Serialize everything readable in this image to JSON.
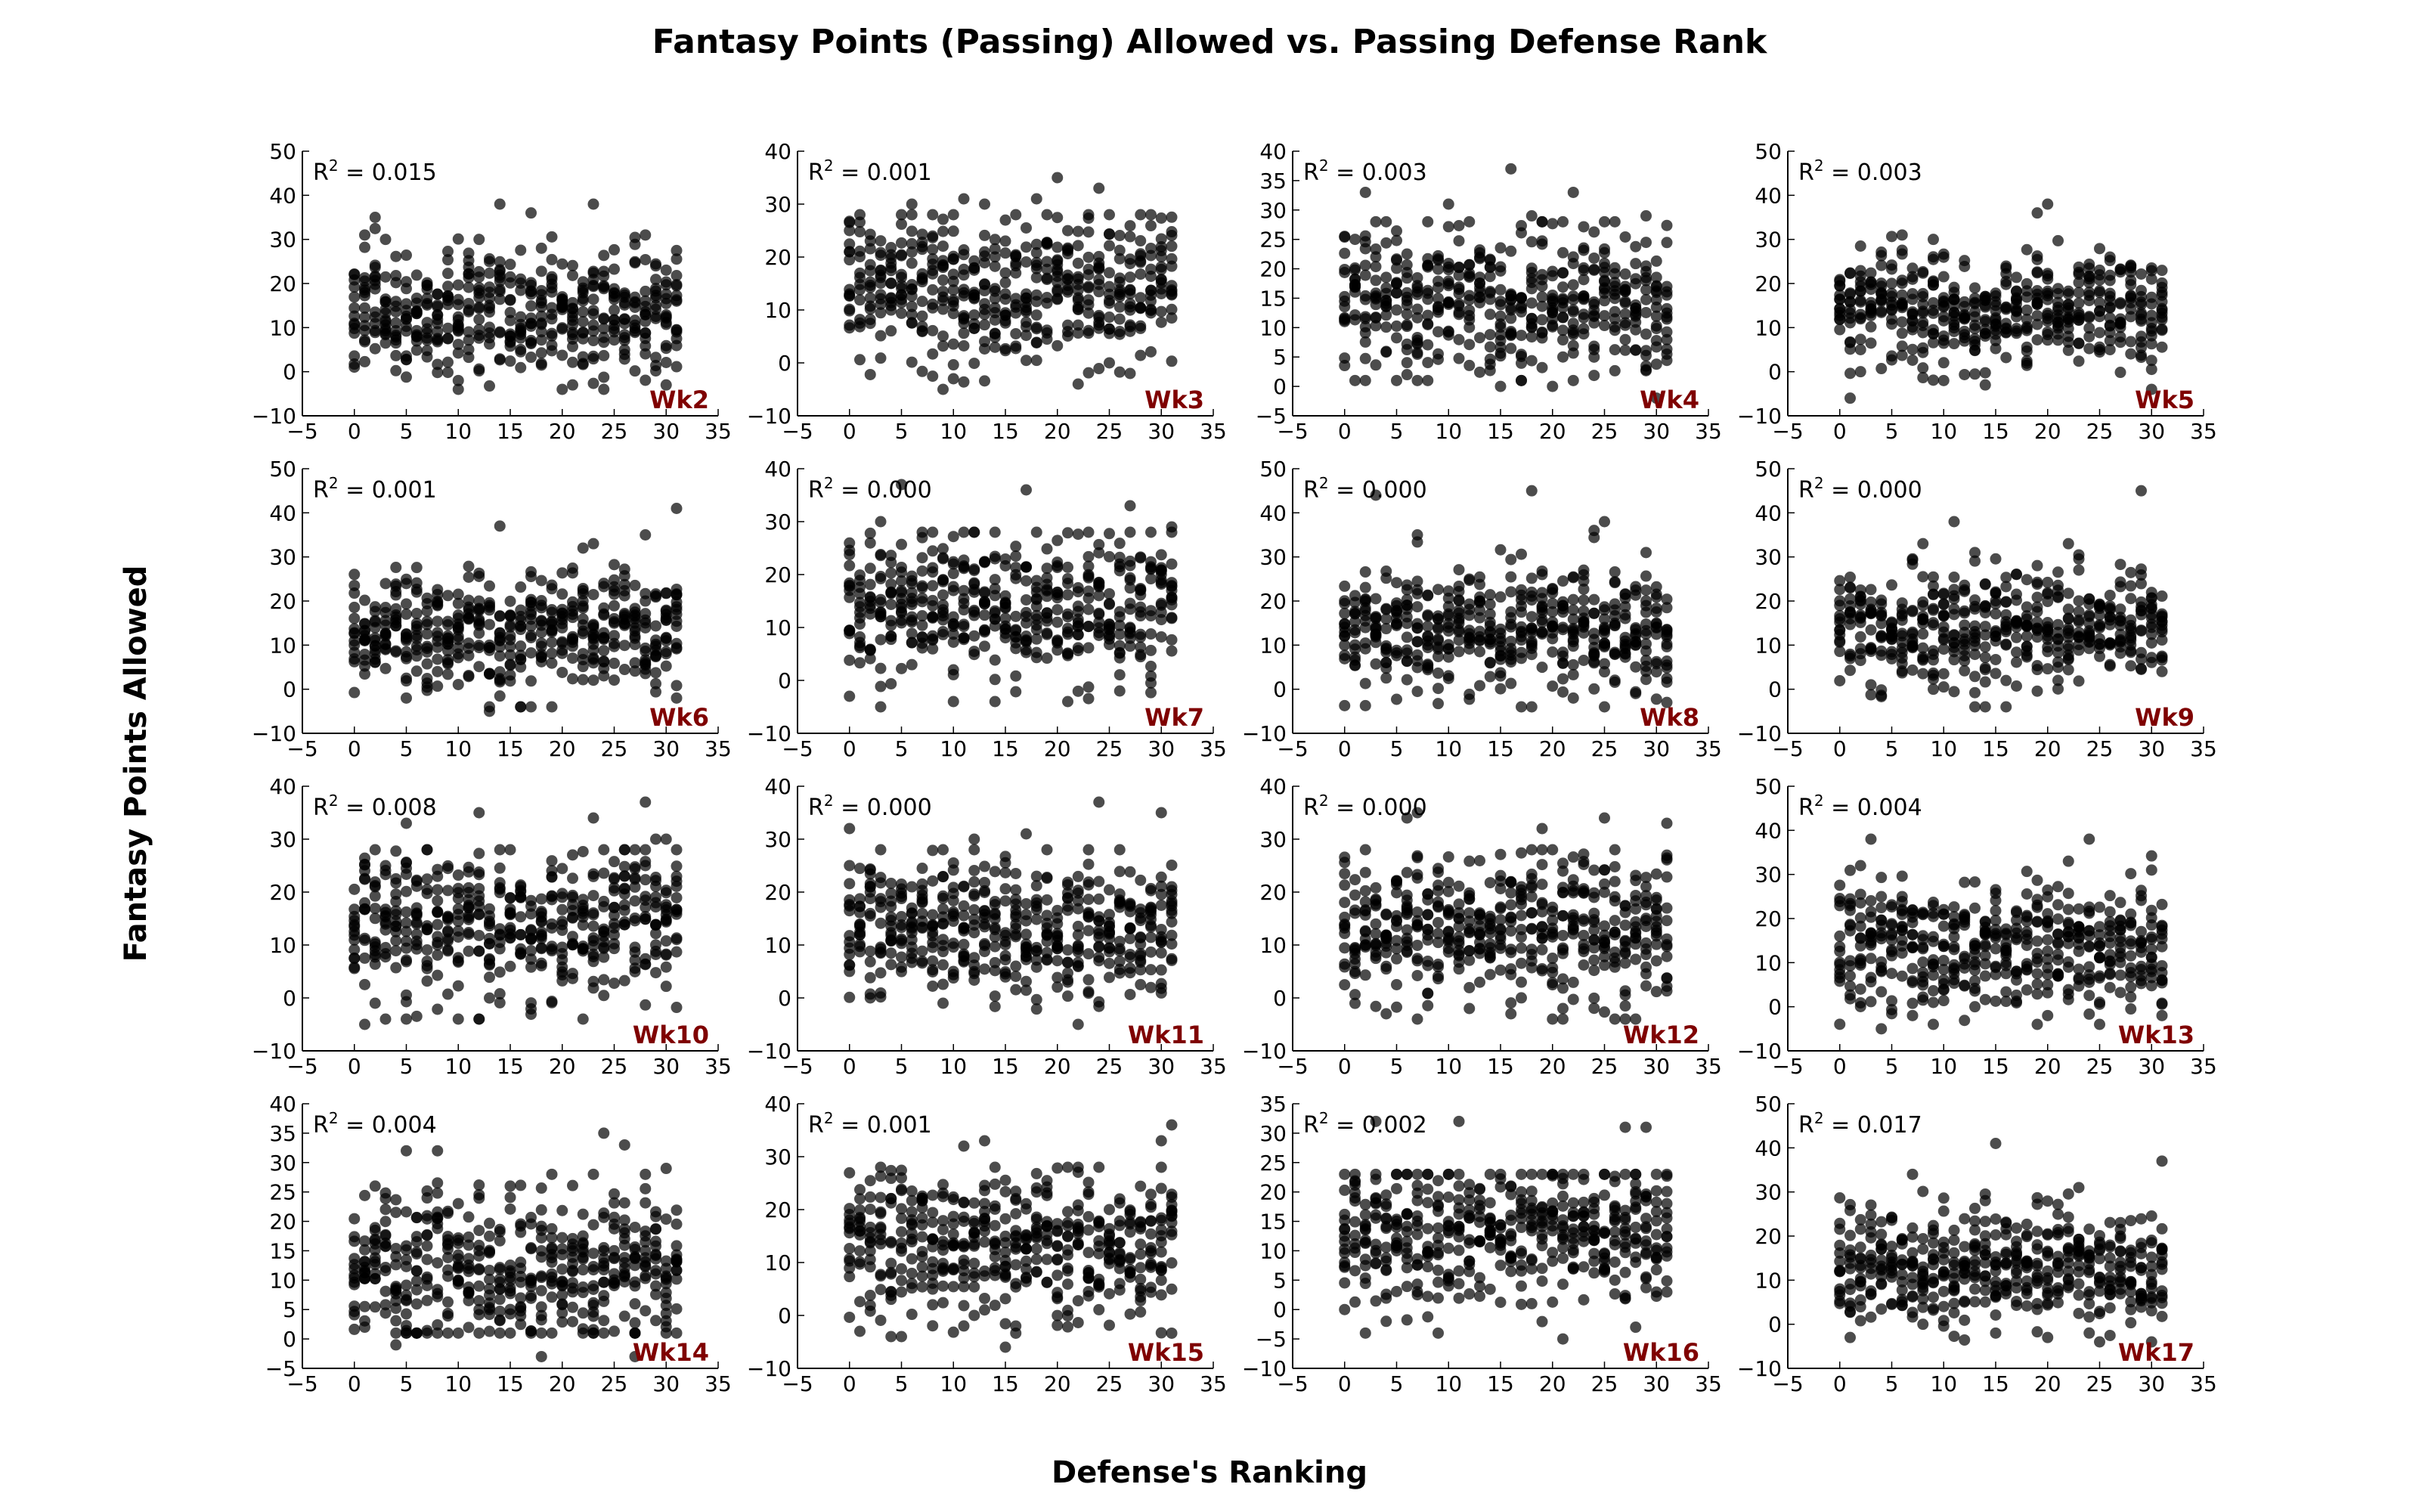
{
  "title": "Fantasy Points (Passing) Allowed vs. Passing Defense Rank",
  "xlabel": "Defense's Ranking",
  "ylabel": "Fantasy Points Allowed",
  "colors": {
    "points": "#000000",
    "week_label": "#7f0000"
  },
  "chart_data": [
    {
      "type": "scatter",
      "week": "Wk2",
      "r2": "0.015",
      "xlim": [
        -5,
        35
      ],
      "ylim": [
        -10,
        50
      ],
      "xticks": [
        -5,
        0,
        5,
        10,
        15,
        20,
        25,
        30,
        35
      ],
      "yticks": [
        -10,
        0,
        10,
        20,
        30,
        40,
        50
      ],
      "y_mean": 13,
      "y_sd": 7,
      "notable_points": [
        [
          2,
          35
        ],
        [
          17,
          36
        ],
        [
          23,
          38
        ],
        [
          28,
          31
        ],
        [
          1,
          31
        ],
        [
          3,
          30
        ],
        [
          12,
          30
        ],
        [
          18,
          28
        ],
        [
          30,
          -3
        ],
        [
          10,
          -2
        ],
        [
          21,
          -3
        ]
      ]
    },
    {
      "type": "scatter",
      "week": "Wk3",
      "r2": "0.001",
      "xlim": [
        -5,
        35
      ],
      "ylim": [
        -10,
        40
      ],
      "xticks": [
        -5,
        0,
        5,
        10,
        15,
        20,
        25,
        30,
        35
      ],
      "yticks": [
        -10,
        0,
        10,
        20,
        30,
        40
      ],
      "y_mean": 14,
      "y_sd": 7,
      "notable_points": [
        [
          20,
          35
        ],
        [
          24,
          33
        ],
        [
          11,
          31
        ],
        [
          18,
          31
        ],
        [
          6,
          30
        ],
        [
          13,
          30
        ],
        [
          9,
          -5
        ],
        [
          10,
          -3
        ],
        [
          22,
          -4
        ],
        [
          0,
          21
        ],
        [
          27,
          -2
        ]
      ]
    },
    {
      "type": "scatter",
      "week": "Wk4",
      "r2": "0.003",
      "xlim": [
        -5,
        35
      ],
      "ylim": [
        -5,
        40
      ],
      "xticks": [
        -5,
        0,
        5,
        10,
        15,
        20,
        25,
        30,
        35
      ],
      "yticks": [
        -5,
        0,
        5,
        10,
        15,
        20,
        25,
        30,
        35,
        40
      ],
      "y_mean": 14,
      "y_sd": 6.5,
      "notable_points": [
        [
          2,
          33
        ],
        [
          16,
          37
        ],
        [
          22,
          33
        ],
        [
          10,
          31
        ],
        [
          29,
          29
        ],
        [
          18,
          29
        ],
        [
          15,
          0
        ],
        [
          20,
          0
        ],
        [
          30,
          -2
        ],
        [
          6,
          2
        ]
      ]
    },
    {
      "type": "scatter",
      "week": "Wk5",
      "r2": "0.003",
      "xlim": [
        -5,
        35
      ],
      "ylim": [
        -10,
        50
      ],
      "xticks": [
        -5,
        0,
        5,
        10,
        15,
        20,
        25,
        30,
        35
      ],
      "yticks": [
        -10,
        0,
        10,
        20,
        30,
        40,
        50
      ],
      "y_mean": 14,
      "y_sd": 6,
      "notable_points": [
        [
          20,
          38
        ],
        [
          19,
          36
        ],
        [
          6,
          31
        ],
        [
          9,
          30
        ],
        [
          1,
          -6
        ],
        [
          14,
          -3
        ],
        [
          10,
          -2
        ],
        [
          2,
          0
        ],
        [
          26,
          26
        ]
      ]
    },
    {
      "type": "scatter",
      "week": "Wk6",
      "r2": "0.001",
      "xlim": [
        -5,
        35
      ],
      "ylim": [
        -10,
        50
      ],
      "xticks": [
        -5,
        0,
        5,
        10,
        15,
        20,
        25,
        30,
        35
      ],
      "yticks": [
        -10,
        0,
        10,
        20,
        30,
        40,
        50
      ],
      "y_mean": 13,
      "y_sd": 7,
      "notable_points": [
        [
          31,
          41
        ],
        [
          14,
          37
        ],
        [
          28,
          35
        ],
        [
          23,
          33
        ],
        [
          22,
          32
        ],
        [
          13,
          -5
        ],
        [
          17,
          -4
        ],
        [
          31,
          -2
        ],
        [
          5,
          -2
        ]
      ]
    },
    {
      "type": "scatter",
      "week": "Wk7",
      "r2": "0.000",
      "xlim": [
        -5,
        35
      ],
      "ylim": [
        -10,
        40
      ],
      "xticks": [
        -5,
        0,
        5,
        10,
        15,
        20,
        25,
        30,
        35
      ],
      "yticks": [
        -10,
        0,
        10,
        20,
        30,
        40
      ],
      "y_mean": 14,
      "y_sd": 7,
      "notable_points": [
        [
          5,
          37
        ],
        [
          17,
          36
        ],
        [
          27,
          33
        ],
        [
          3,
          30
        ],
        [
          31,
          29
        ],
        [
          0,
          -3
        ],
        [
          3,
          -5
        ],
        [
          26,
          -2
        ],
        [
          10,
          2
        ]
      ]
    },
    {
      "type": "scatter",
      "week": "Wk8",
      "r2": "0.000",
      "xlim": [
        -5,
        35
      ],
      "ylim": [
        -10,
        50
      ],
      "xticks": [
        -5,
        0,
        5,
        10,
        15,
        20,
        25,
        30,
        35
      ],
      "yticks": [
        -10,
        0,
        10,
        20,
        30,
        40,
        50
      ],
      "y_mean": 13,
      "y_sd": 7,
      "notable_points": [
        [
          18,
          45
        ],
        [
          25,
          38
        ],
        [
          7,
          35
        ],
        [
          24,
          36
        ],
        [
          3,
          44
        ],
        [
          18,
          -4
        ],
        [
          31,
          -3
        ],
        [
          22,
          -2
        ],
        [
          29,
          31
        ]
      ]
    },
    {
      "type": "scatter",
      "week": "Wk9",
      "r2": "0.000",
      "xlim": [
        -5,
        35
      ],
      "ylim": [
        -10,
        50
      ],
      "xticks": [
        -5,
        0,
        5,
        10,
        15,
        20,
        25,
        30,
        35
      ],
      "yticks": [
        -10,
        0,
        10,
        20,
        30,
        40,
        50
      ],
      "y_mean": 14,
      "y_sd": 6.5,
      "notable_points": [
        [
          29,
          45
        ],
        [
          11,
          38
        ],
        [
          22,
          33
        ],
        [
          13,
          31
        ],
        [
          8,
          33
        ],
        [
          9,
          0
        ],
        [
          21,
          2
        ],
        [
          3,
          1
        ]
      ]
    },
    {
      "type": "scatter",
      "week": "Wk10",
      "r2": "0.008",
      "xlim": [
        -5,
        35
      ],
      "ylim": [
        -10,
        40
      ],
      "xticks": [
        -5,
        0,
        5,
        10,
        15,
        20,
        25,
        30,
        35
      ],
      "yticks": [
        -10,
        0,
        10,
        20,
        30,
        40
      ],
      "y_mean": 14,
      "y_sd": 7,
      "notable_points": [
        [
          28,
          37
        ],
        [
          12,
          35
        ],
        [
          23,
          34
        ],
        [
          5,
          33
        ],
        [
          29,
          30
        ],
        [
          30,
          30
        ],
        [
          1,
          -5
        ],
        [
          5,
          -4
        ],
        [
          2,
          -1
        ]
      ]
    },
    {
      "type": "scatter",
      "week": "Wk11",
      "r2": "0.000",
      "xlim": [
        -5,
        35
      ],
      "ylim": [
        -10,
        40
      ],
      "xticks": [
        -5,
        0,
        5,
        10,
        15,
        20,
        25,
        30,
        35
      ],
      "yticks": [
        -10,
        0,
        10,
        20,
        30,
        40
      ],
      "y_mean": 13,
      "y_sd": 6.5,
      "notable_points": [
        [
          24,
          37
        ],
        [
          30,
          35
        ],
        [
          0,
          32
        ],
        [
          17,
          31
        ],
        [
          12,
          30
        ],
        [
          22,
          -5
        ],
        [
          9,
          -1
        ],
        [
          2,
          0
        ]
      ]
    },
    {
      "type": "scatter",
      "week": "Wk12",
      "r2": "0.000",
      "xlim": [
        -5,
        35
      ],
      "ylim": [
        -10,
        40
      ],
      "xticks": [
        -5,
        0,
        5,
        10,
        15,
        20,
        25,
        30,
        35
      ],
      "yticks": [
        -10,
        0,
        10,
        20,
        30,
        40
      ],
      "y_mean": 13,
      "y_sd": 7,
      "notable_points": [
        [
          7,
          35
        ],
        [
          6,
          34
        ],
        [
          31,
          33
        ],
        [
          25,
          34
        ],
        [
          19,
          32
        ],
        [
          4,
          -3
        ],
        [
          16,
          -3
        ],
        [
          21,
          -2
        ],
        [
          12,
          -2
        ]
      ]
    },
    {
      "type": "scatter",
      "week": "Wk13",
      "r2": "0.004",
      "xlim": [
        -5,
        35
      ],
      "ylim": [
        -10,
        50
      ],
      "xticks": [
        -5,
        0,
        5,
        10,
        15,
        20,
        25,
        30,
        35
      ],
      "yticks": [
        -10,
        0,
        10,
        20,
        30,
        40,
        50
      ],
      "y_mean": 13,
      "y_sd": 7,
      "notable_points": [
        [
          3,
          38
        ],
        [
          24,
          38
        ],
        [
          2,
          32
        ],
        [
          30,
          31
        ],
        [
          22,
          33
        ],
        [
          4,
          -5
        ],
        [
          31,
          -2
        ],
        [
          20,
          -2
        ],
        [
          7,
          -2
        ]
      ]
    },
    {
      "type": "scatter",
      "week": "Wk14",
      "r2": "0.004",
      "xlim": [
        -5,
        35
      ],
      "ylim": [
        -5,
        40
      ],
      "xticks": [
        -5,
        0,
        5,
        10,
        15,
        20,
        25,
        30,
        35
      ],
      "yticks": [
        -5,
        0,
        5,
        10,
        15,
        20,
        25,
        30,
        35,
        40
      ],
      "y_mean": 12,
      "y_sd": 6.5,
      "notable_points": [
        [
          24,
          35
        ],
        [
          26,
          33
        ],
        [
          5,
          32
        ],
        [
          8,
          32
        ],
        [
          30,
          29
        ],
        [
          18,
          -3
        ],
        [
          27,
          -3
        ],
        [
          4,
          -1
        ],
        [
          1,
          2
        ]
      ]
    },
    {
      "type": "scatter",
      "week": "Wk15",
      "r2": "0.001",
      "xlim": [
        -5,
        35
      ],
      "ylim": [
        -10,
        40
      ],
      "xticks": [
        -5,
        0,
        5,
        10,
        15,
        20,
        25,
        30,
        35
      ],
      "yticks": [
        -10,
        0,
        10,
        20,
        30,
        40
      ],
      "y_mean": 13,
      "y_sd": 7,
      "notable_points": [
        [
          31,
          36
        ],
        [
          30,
          33
        ],
        [
          13,
          33
        ],
        [
          11,
          32
        ],
        [
          15,
          -6
        ],
        [
          1,
          -3
        ],
        [
          4,
          -4
        ],
        [
          16,
          -2
        ],
        [
          30,
          24
        ]
      ]
    },
    {
      "type": "scatter",
      "week": "Wk16",
      "r2": "0.002",
      "xlim": [
        -5,
        35
      ],
      "ylim": [
        -10,
        35
      ],
      "xticks": [
        -5,
        0,
        5,
        10,
        15,
        20,
        25,
        30,
        35
      ],
      "yticks": [
        -10,
        -5,
        0,
        5,
        10,
        15,
        20,
        25,
        30,
        35
      ],
      "y_mean": 13,
      "y_sd": 6.5,
      "notable_points": [
        [
          3,
          32
        ],
        [
          11,
          32
        ],
        [
          29,
          31
        ],
        [
          27,
          31
        ],
        [
          21,
          -5
        ],
        [
          4,
          -2
        ],
        [
          28,
          -3
        ],
        [
          0,
          0
        ]
      ]
    },
    {
      "type": "scatter",
      "week": "Wk17",
      "r2": "0.017",
      "xlim": [
        -5,
        35
      ],
      "ylim": [
        -10,
        50
      ],
      "xticks": [
        -5,
        0,
        5,
        10,
        15,
        20,
        25,
        30,
        35
      ],
      "yticks": [
        -10,
        0,
        10,
        20,
        30,
        40,
        50
      ],
      "y_mean": 13,
      "y_sd": 6.5,
      "notable_points": [
        [
          15,
          41
        ],
        [
          31,
          37
        ],
        [
          7,
          34
        ],
        [
          23,
          31
        ],
        [
          1,
          -3
        ],
        [
          20,
          -3
        ],
        [
          15,
          -2
        ],
        [
          8,
          0
        ]
      ]
    }
  ]
}
